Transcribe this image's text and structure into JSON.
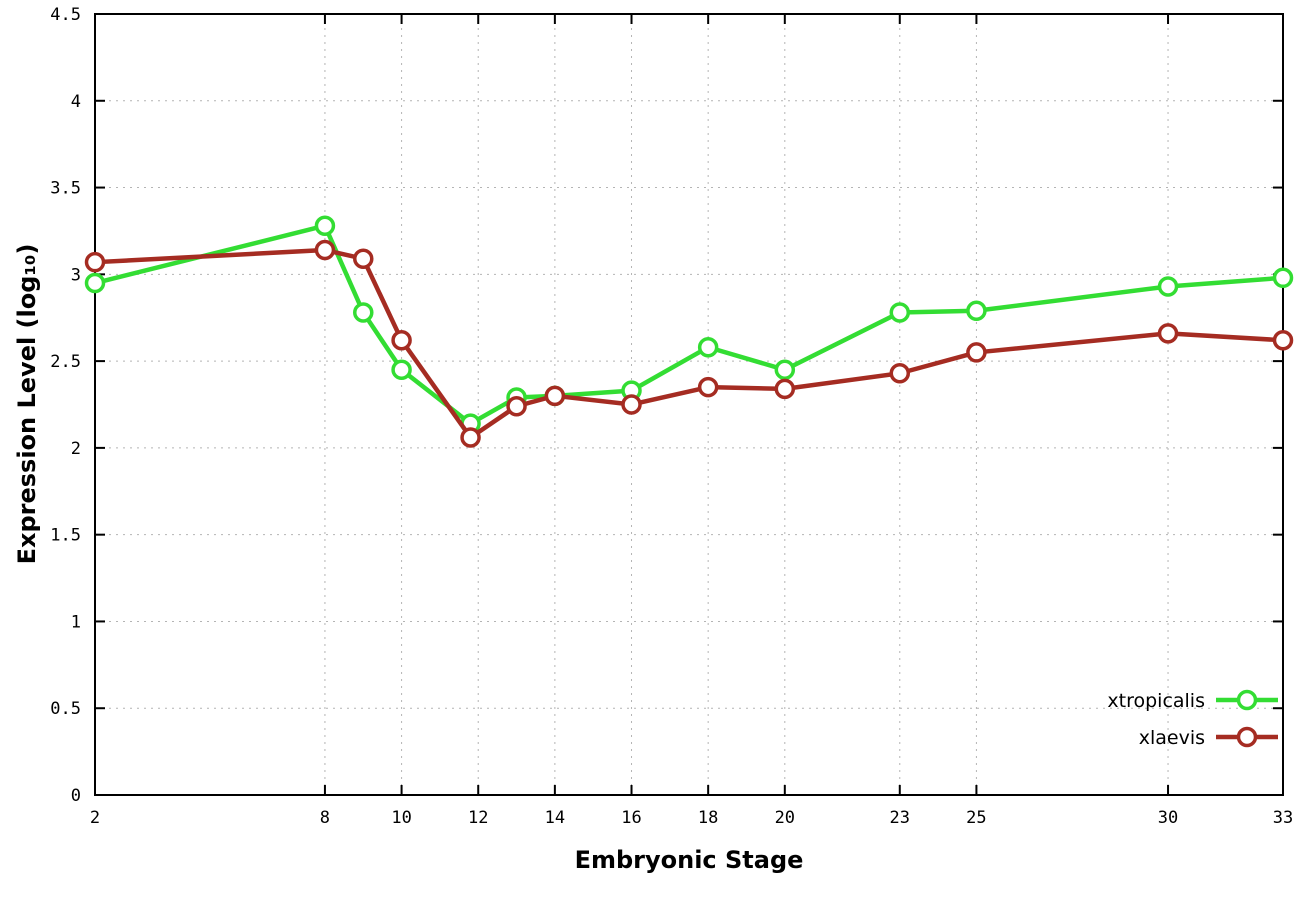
{
  "chart_data": {
    "type": "line",
    "title": "",
    "xlabel": "Embryonic Stage",
    "ylabel": "Expression Level (log₁₀)",
    "xlim": [
      2,
      33
    ],
    "ylim": [
      0,
      4.5
    ],
    "xticks": [
      2,
      8,
      10,
      12,
      14,
      16,
      18,
      20,
      23,
      25,
      30,
      33
    ],
    "yticks": [
      0,
      0.5,
      1,
      1.5,
      2,
      2.5,
      3,
      3.5,
      4,
      4.5
    ],
    "grid": true,
    "grid_color": "#b4b4b4",
    "border_color": "#000000",
    "legend_position": "bottom-right",
    "x": [
      2,
      8,
      9,
      10,
      11.8,
      13,
      14,
      16,
      18,
      20,
      23,
      25,
      30,
      33
    ],
    "series": [
      {
        "name": "xtropicalis",
        "color": "#33dd33",
        "values": [
          2.95,
          3.28,
          2.78,
          2.45,
          2.14,
          2.29,
          2.3,
          2.33,
          2.58,
          2.45,
          2.78,
          2.79,
          2.93,
          2.98
        ]
      },
      {
        "name": "xlaevis",
        "color": "#a52c22",
        "values": [
          3.07,
          3.14,
          3.09,
          2.62,
          2.06,
          2.24,
          2.3,
          2.25,
          2.35,
          2.34,
          2.43,
          2.55,
          2.66,
          2.62
        ]
      }
    ]
  }
}
